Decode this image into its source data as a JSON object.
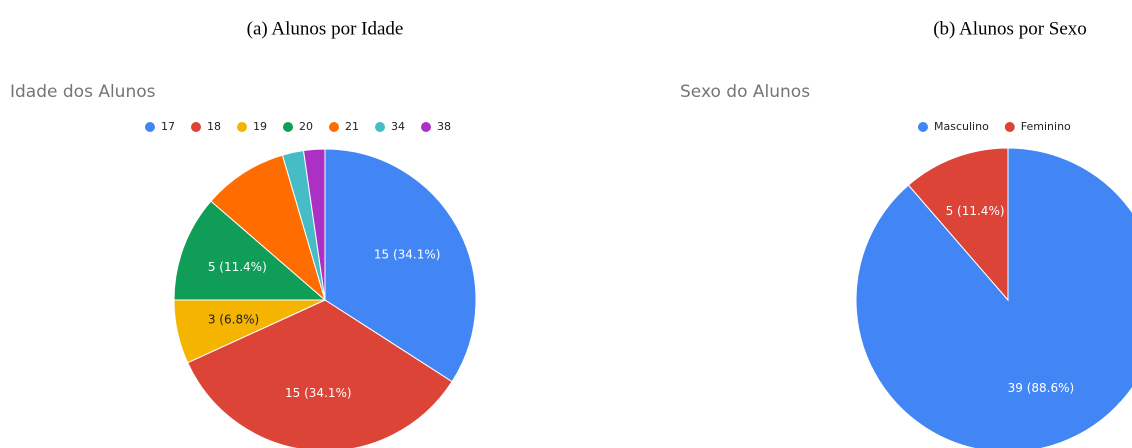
{
  "chart_data": [
    {
      "type": "pie",
      "caption": "(a) Alunos por Idade",
      "title": "Idade dos Alunos",
      "categories": [
        "17",
        "18",
        "19",
        "20",
        "21",
        "34",
        "38"
      ],
      "values": [
        15,
        15,
        3,
        5,
        4,
        1,
        1
      ],
      "value_labels": [
        "15 (34.1%)",
        "15 (34.1%)",
        "3 (6.8%)",
        "5 (11.4%)",
        null,
        null,
        null
      ],
      "colors": [
        "#4285f4",
        "#db4437",
        "#f4b400",
        "#0f9d58",
        "#ff6d00",
        "#46bdc6",
        "#ab30c4"
      ],
      "legend": "top"
    },
    {
      "type": "pie",
      "caption": "(b) Alunos por Sexo",
      "title": "Sexo do Alunos",
      "categories": [
        "Masculino",
        "Feminino"
      ],
      "values": [
        39,
        5
      ],
      "value_labels": [
        "39 (88.6%)",
        "5 (11.4%)"
      ],
      "colors": [
        "#4285f4",
        "#db4437"
      ],
      "legend": "top"
    }
  ]
}
